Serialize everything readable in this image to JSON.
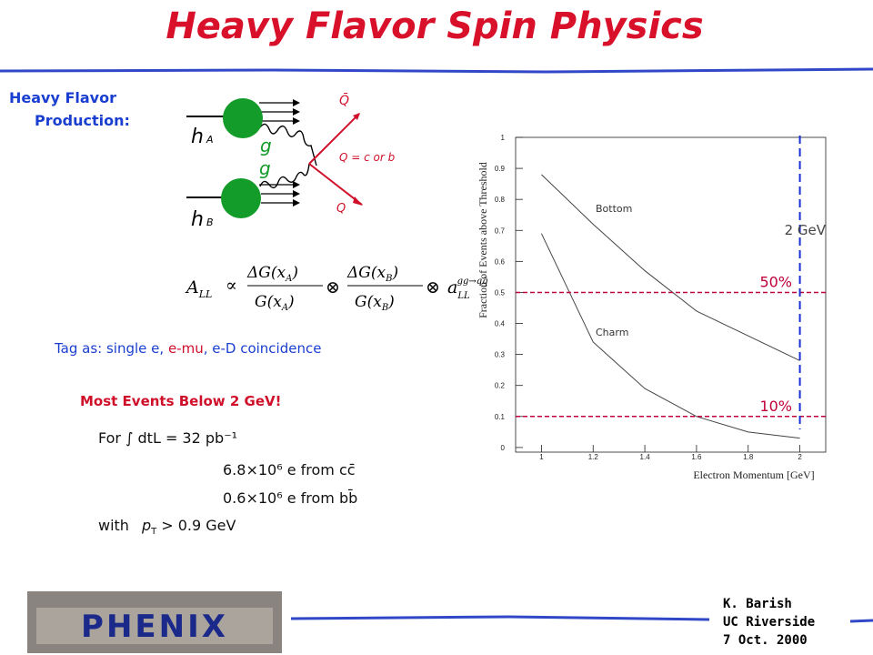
{
  "header": {
    "title": "Heavy Flavor Spin Physics"
  },
  "section": {
    "line1": "Heavy Flavor",
    "line2": "Production:"
  },
  "diagram": {
    "anti_quark": "Q̄",
    "quark_def": "Q = c or b",
    "quark": "Q",
    "gluon_a": "g",
    "gluon_b": "g",
    "hadron_a": "h",
    "hadron_a_sub": "A",
    "hadron_b": "h",
    "hadron_b_sub": "B"
  },
  "equation": {
    "lhs": "A",
    "lhs_sub": "LL",
    "relation": "∝",
    "delta_g": "ΔG(x",
    "g": "G(x",
    "sub_a": "A",
    "sub_b": "B",
    "close": ")",
    "convolve": "⊗",
    "rhs": "a",
    "rhs_sub": "LL",
    "rhs_sup": "gg→qq̄"
  },
  "tag": {
    "prefix": "Tag as: single e, ",
    "mu": "e-mu",
    "suffix": ", e-D coincidence"
  },
  "headline": "Most Events Below 2 GeV!",
  "rates": {
    "lumi": "For ∫ dtL = 32 pb⁻¹",
    "charm": "6.8×10⁶ e from cc̄",
    "bottom": "0.6×10⁶ e from bb̄",
    "cut_prefix": "with",
    "cut_p": "p",
    "cut_sub": "T",
    "cut_suffix": "> 0.9 GeV"
  },
  "footer": {
    "logo": "PHENIX",
    "author": "K. Barish",
    "institution": "UC Riverside",
    "date": "7 Oct. 2000"
  },
  "chart_data": {
    "type": "line",
    "x_label": "Electron Momentum [GeV]",
    "y_label": "Fraction of Events above Threshold",
    "x": [
      1,
      1.2,
      1.4,
      1.6,
      1.8,
      2
    ],
    "series": [
      {
        "name": "Bottom",
        "color": "#444444",
        "values": [
          0.88,
          0.72,
          0.57,
          0.44,
          0.36,
          0.28
        ]
      },
      {
        "name": "Charm",
        "color": "#444444",
        "values": [
          0.69,
          0.34,
          0.19,
          0.1,
          0.05,
          0.03
        ]
      }
    ],
    "xlim": [
      0.9,
      2.1
    ],
    "ylim": [
      -0.015,
      1.0
    ],
    "xticks": [
      1,
      1.2,
      1.4,
      1.6,
      1.8,
      2
    ],
    "yticks": [
      0,
      0.1,
      0.2,
      0.3,
      0.4,
      0.5,
      0.6,
      0.7,
      0.8,
      0.9,
      1
    ],
    "hlines": [
      {
        "value": 0.5,
        "label": "50%",
        "color": "#c0003a"
      },
      {
        "value": 0.1,
        "label": "10%",
        "color": "#c0003a"
      }
    ],
    "vline": {
      "value": 2,
      "label": "2 GeV",
      "color": "#1a2fd6"
    }
  }
}
